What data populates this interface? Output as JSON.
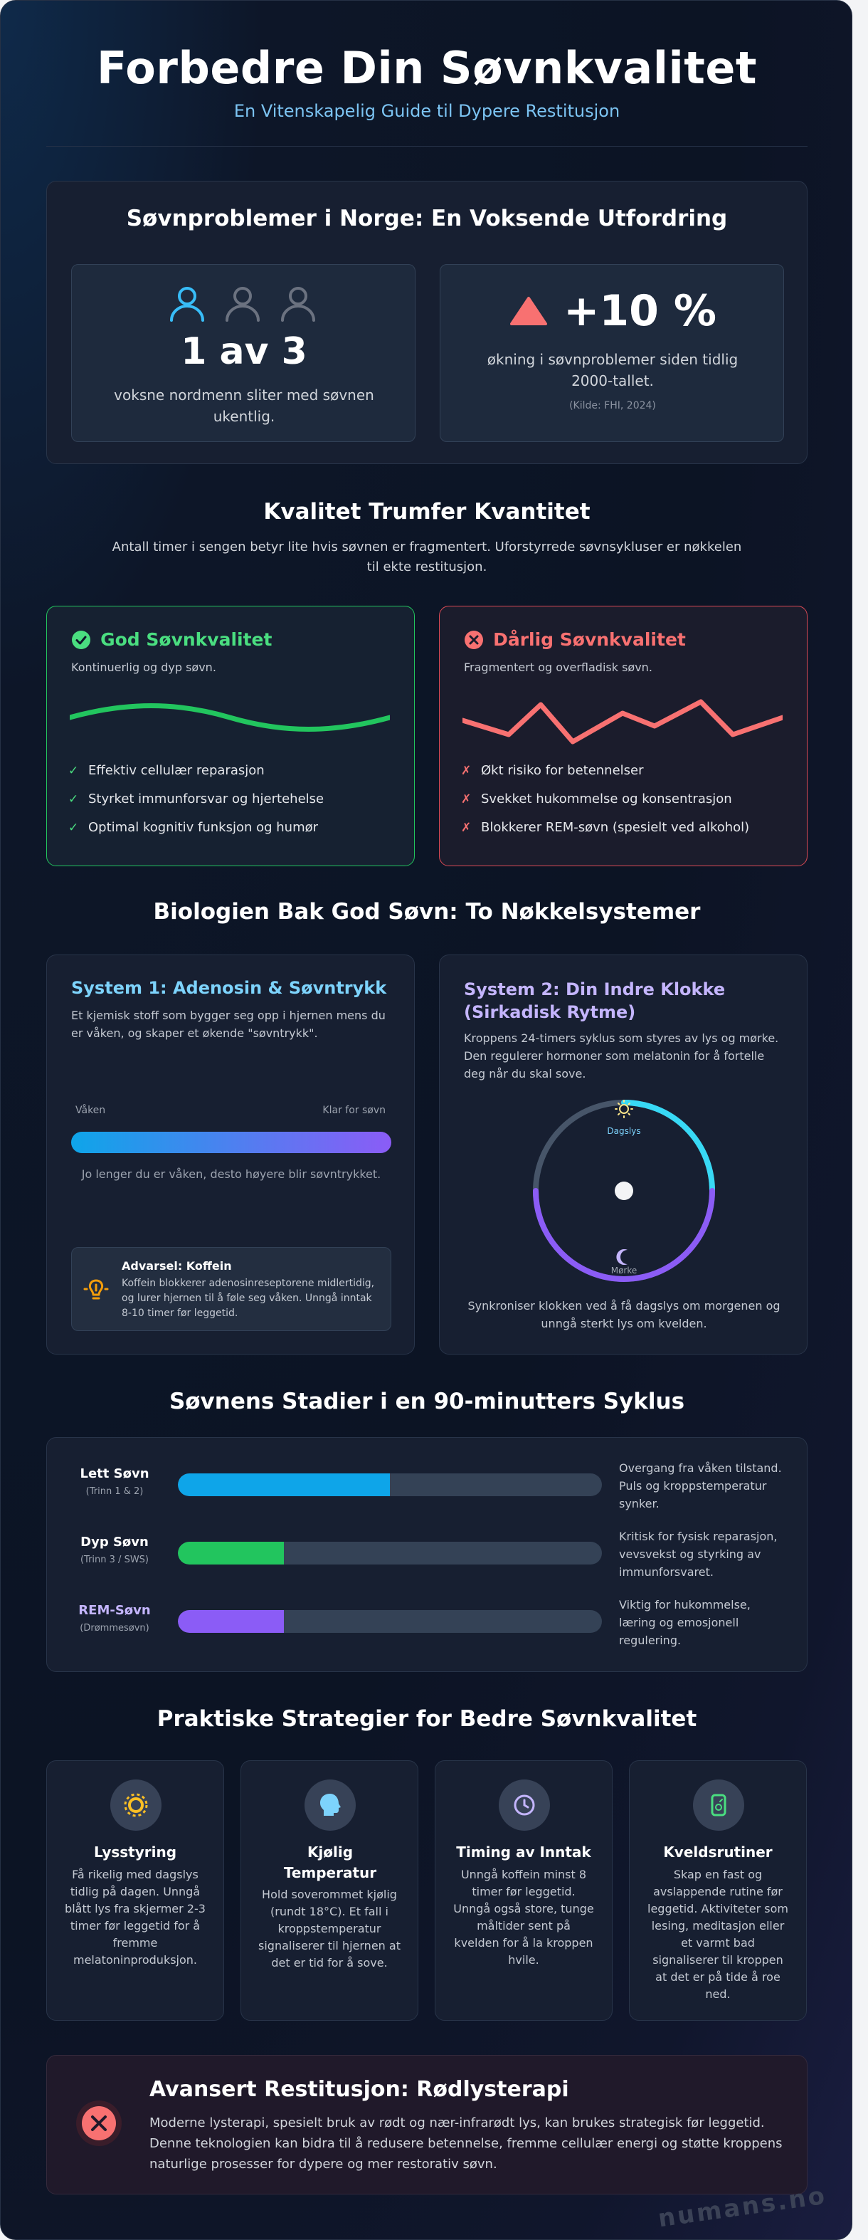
{
  "header": {
    "title": "Forbedre Din Søvnkvalitet",
    "subtitle": "En Vitenskapelig Guide til Dypere Restitusjon"
  },
  "problems": {
    "title": "Søvnproblemer i Norge: En Voksende Utfordring",
    "stat1": {
      "value": "1 av 3",
      "text": "voksne nordmenn sliter med søvnen ukentlig."
    },
    "stat2": {
      "value": "+10 %",
      "text": "økning i søvnproblemer siden tidlig 2000-tallet.",
      "source": "(Kilde: FHI, 2024)"
    }
  },
  "quality": {
    "title": "Kvalitet Trumfer Kvantitet",
    "intro": "Antall timer i sengen betyr lite hvis søvnen er fragmentert. Uforstyrrede søvnsykluser er nøkkelen til ekte restitusjon.",
    "good": {
      "title": "God Søvnkvalitet",
      "subtitle": "Kontinuerlig og dyp søvn.",
      "items": [
        "Effektiv cellulær reparasjon",
        "Styrket immunforsvar og hjertehelse",
        "Optimal kognitiv funksjon og humør"
      ]
    },
    "bad": {
      "title": "Dårlig Søvnkvalitet",
      "subtitle": "Fragmentert og overfladisk søvn.",
      "items": [
        "Økt risiko for betennelser",
        "Svekket hukommelse og konsentrasjon",
        "Blokkerer REM-søvn (spesielt ved alkohol)"
      ]
    },
    "check_mark": "✓",
    "cross_mark": "✗"
  },
  "biology": {
    "title": "Biologien Bak God Søvn: To Nøkkelsystemer",
    "system1": {
      "title": "System 1: Adenosin & Søvntrykk",
      "text": "Et kjemisk stoff som bygger seg opp i hjernen mens du er våken, og skaper et økende \"søvntrykk\".",
      "label_left": "Våken",
      "label_right": "Klar for søvn",
      "caption": "Jo lenger du er våken, desto høyere blir søvntrykket.",
      "warning_title": "Advarsel: Koffein",
      "warning_text": "Koffein blokkerer adenosinreseptorene midlertidig, og lurer hjernen til å føle seg våken. Unngå inntak 8-10 timer før leggetid."
    },
    "system2": {
      "title_line1": "System 2: Din Indre Klokke",
      "title_line2": "(Sirkadisk Rytme)",
      "text": "Kroppens 24-timers syklus som styres av lys og mørke. Den regulerer hormoner som melatonin for å fortelle deg når du skal sove.",
      "day_label": "Dagslys",
      "night_label": "Mørke",
      "caption": "Synkroniser klokken ved å få dagslys om morgenen og unngå sterkt lys om kvelden."
    }
  },
  "stages": {
    "title": "Søvnens Stadier i en 90-minutters Syklus",
    "items": [
      {
        "name": "Lett Søvn",
        "sub": "(Trinn 1 & 2)",
        "fraction": 0.5,
        "color": "#0ea5e9",
        "desc": "Overgang fra våken tilstand. Puls og kroppstemperatur synker."
      },
      {
        "name": "Dyp Søvn",
        "sub": "(Trinn 3 / SWS)",
        "fraction": 0.25,
        "color": "#22c55e",
        "desc": "Kritisk for fysisk reparasjon, vevsvekst og styrking av immunforsvaret."
      },
      {
        "name": "REM-Søvn",
        "sub": "(Drømmesøvn)",
        "fraction": 0.25,
        "color": "#8b5cf6",
        "desc": "Viktig for hukommelse, læring og emosjonell regulering."
      }
    ]
  },
  "strategies": {
    "title": "Praktiske Strategier for Bedre Søvnkvalitet",
    "items": [
      {
        "title": "Lysstyring",
        "text": "Få rikelig med dagslys tidlig på dagen. Unngå blått lys fra skjermer 2-3 timer før leggetid for å fremme melatoninproduksjon."
      },
      {
        "title": "Kjølig Temperatur",
        "text": "Hold soverommet kjølig (rundt 18°C). Et fall i kroppstemperatur signaliserer til hjernen at det er tid for å sove."
      },
      {
        "title": "Timing av Inntak",
        "text": "Unngå koffein minst 8 timer før leggetid. Unngå også store, tunge måltider sent på kvelden for å la kroppen hvile."
      },
      {
        "title": "Kveldsrutiner",
        "text": "Skap en fast og avslappende rutine før leggetid. Aktiviteter som lesing, meditasjon eller et varmt bad signaliserer til kroppen at det er på tide å roe ned."
      }
    ]
  },
  "advanced": {
    "title": "Avansert Restitusjon: Rødlysterapi",
    "text": "Moderne lysterapi, spesielt bruk av rødt og nær-infrarødt lys, kan brukes strategisk før leggetid. Denne teknologien kan bidra til å redusere betennelse, fremme cellulær energi og støtte kroppens naturlige prosesser for dypere og mer restorativ søvn."
  },
  "watermark": "numans.no",
  "colors": {
    "accent_blue": "#38bdf8",
    "good_green": "#4ade80",
    "bad_red": "#f87171",
    "purple": "#c4b5fd",
    "warning_amber": "#f59e0b"
  }
}
